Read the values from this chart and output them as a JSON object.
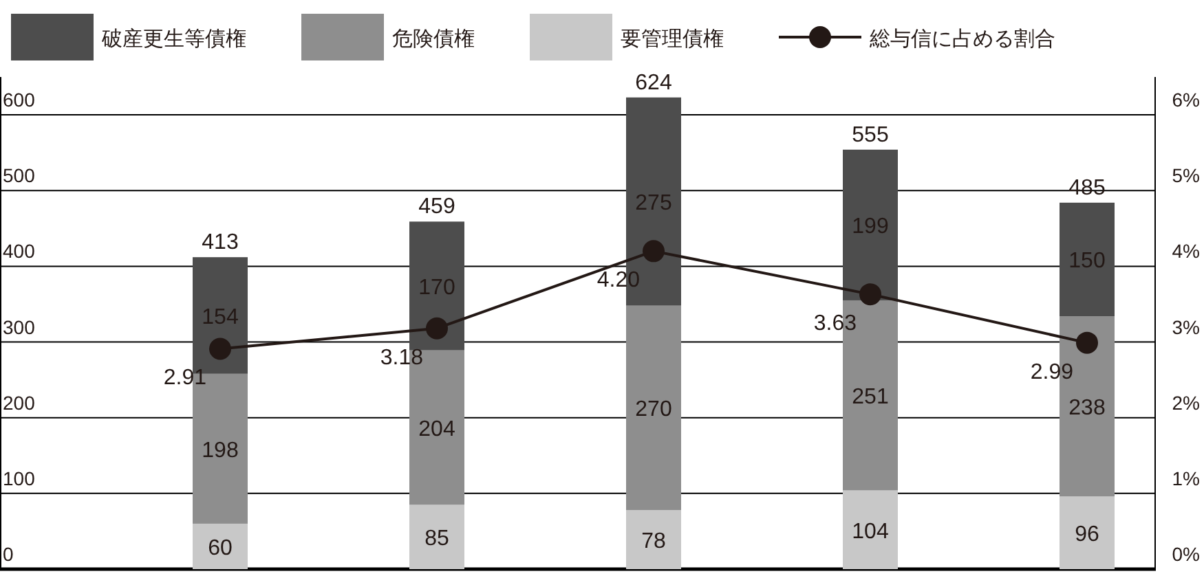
{
  "chart_data": {
    "type": "bar",
    "stacked": true,
    "categories": [
      null,
      null,
      null,
      null,
      null
    ],
    "series": [
      {
        "name": "要管理債権",
        "color": "#c8c8c8",
        "values": [
          60,
          85,
          78,
          104,
          96
        ]
      },
      {
        "name": "危険債権",
        "color": "#8e8e8e",
        "values": [
          198,
          204,
          270,
          251,
          238
        ]
      },
      {
        "name": "破産更生等債権",
        "color": "#4d4d4d",
        "values": [
          154,
          170,
          275,
          199,
          150
        ]
      },
      {
        "name": "総与信に占める割合",
        "type": "line",
        "axis": "y2",
        "color": "#231815",
        "values": [
          2.91,
          3.18,
          4.2,
          3.63,
          2.99
        ],
        "value_labels": [
          "2.91",
          "3.18",
          "4.20",
          "3.63",
          "2.99"
        ]
      }
    ],
    "totals": [
      "413",
      "459",
      "624",
      "555",
      "485"
    ],
    "data_labels": true,
    "ylim": [
      0,
      650
    ],
    "yticks": [
      0,
      100,
      200,
      300,
      400,
      500,
      600
    ],
    "y2lim": [
      0,
      6.5
    ],
    "y2ticks": [
      {
        "value": 0,
        "label": "0%"
      },
      {
        "value": 1,
        "label": "1%"
      },
      {
        "value": 2,
        "label": "2%"
      },
      {
        "value": 3,
        "label": "3%"
      },
      {
        "value": 4,
        "label": "4%"
      },
      {
        "value": 5,
        "label": "5%"
      },
      {
        "value": 6,
        "label": "6%"
      }
    ],
    "grid": "y",
    "legend": "top",
    "marker": "circle"
  }
}
